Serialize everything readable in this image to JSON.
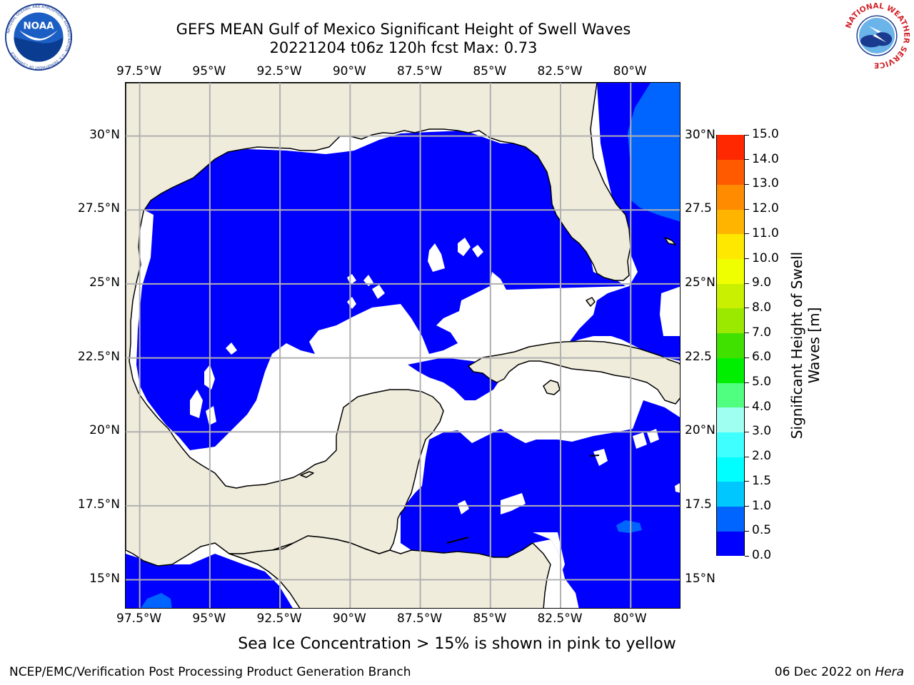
{
  "title": {
    "line1": "GEFS MEAN Gulf of Mexico Significant Height of Swell Waves",
    "line2": "20221204 t06z 120h fcst   Max: 0.73"
  },
  "logos": {
    "left": {
      "name": "NOAA",
      "text": "NOAA",
      "ring_text": "NATIONAL OCEANIC AND ATMOSPHERIC ADMINISTRATION · U.S. DEPARTMENT OF COMMERCE"
    },
    "right": {
      "name": "National Weather Service",
      "ring_text": "NATIONAL WEATHER SERVICE"
    }
  },
  "map": {
    "extent": {
      "lon_min": -98.0,
      "lon_max": -78.2,
      "lat_min": 14.0,
      "lat_max": 31.8
    },
    "lon_ticks": [
      "97.5°W",
      "95°W",
      "92.5°W",
      "90°W",
      "87.5°W",
      "85°W",
      "82.5°W",
      "80°W"
    ],
    "lon_tick_values": [
      -97.5,
      -95,
      -92.5,
      -90,
      -87.5,
      -85,
      -82.5,
      -80
    ],
    "lat_ticks_left": [
      "15°N",
      "17.5°N",
      "20°N",
      "22.5°N",
      "25°N",
      "27.5°N",
      "30°N"
    ],
    "lat_ticks_right": [
      "15°N",
      "17.5",
      "20°N",
      "22.5",
      "25°N",
      "27.5",
      "30°N"
    ],
    "lat_tick_values": [
      15,
      17.5,
      20,
      22.5,
      25,
      27.5,
      30
    ],
    "colors": {
      "land": "#efecdc",
      "coast": "#000000",
      "grid": "#b0b0b0",
      "calm_water": "#ffffff"
    }
  },
  "colorbar": {
    "title": "Significant Height of Swell Waves [m]",
    "title_line1": "Significant Height of Swell",
    "title_line2": "Waves [m]",
    "ticks": [
      "0.0",
      "0.5",
      "1.0",
      "1.5",
      "2.0",
      "3.0",
      "4.0",
      "5.0",
      "6.0",
      "7.0",
      "8.0",
      "9.0",
      "10.0",
      "11.0",
      "12.0",
      "13.0",
      "14.0",
      "15.0"
    ],
    "levels": [
      0,
      0.5,
      1,
      1.5,
      2,
      3,
      4,
      5,
      6,
      7,
      8,
      9,
      10,
      11,
      12,
      13,
      14,
      15
    ],
    "colors": [
      "#0000ff",
      "#0064ff",
      "#00c8ff",
      "#00ffff",
      "#40ffff",
      "#9ffff0",
      "#50ff80",
      "#00ef00",
      "#40e000",
      "#9be800",
      "#c8f000",
      "#f0ff00",
      "#ffe800",
      "#ffb400",
      "#ff8c00",
      "#ff5a00",
      "#ff2800"
    ]
  },
  "ice_note": "Sea Ice Concentration > 15% is shown in pink to yellow",
  "footer": {
    "left": "NCEP/EMC/Verification Post Processing Product Generation Branch",
    "right_prefix": "06 Dec 2022 on ",
    "right_host": "Hera"
  }
}
